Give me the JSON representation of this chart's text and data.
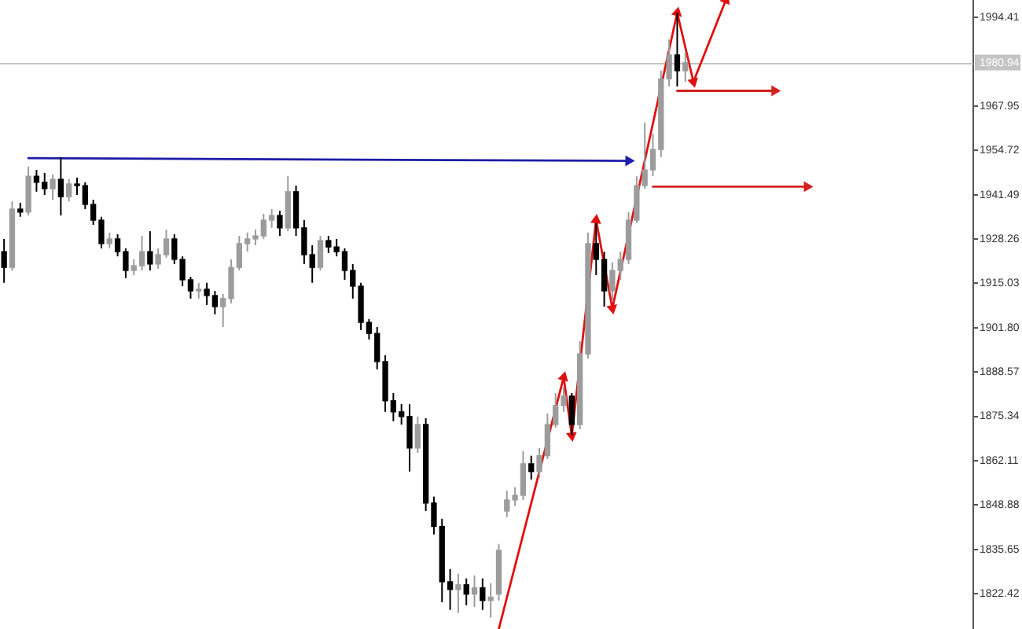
{
  "chart_data": {
    "type": "candlestick",
    "categories": [
      null,
      null,
      null,
      null,
      null,
      null,
      null,
      null,
      null,
      null,
      null,
      null,
      null,
      null,
      null,
      null,
      null,
      null,
      null,
      null,
      null,
      null,
      null,
      null,
      null,
      null,
      null,
      null,
      null,
      null,
      null,
      null,
      null,
      null,
      null,
      null,
      null,
      null,
      null,
      null,
      null,
      null,
      null,
      null,
      null,
      null,
      null,
      null,
      null,
      null,
      null,
      null,
      null,
      null,
      null,
      null,
      null,
      null,
      null,
      null,
      null,
      null,
      null,
      null,
      null,
      null,
      null,
      null,
      null,
      null,
      null,
      null,
      null,
      null,
      null,
      null,
      null,
      null,
      null,
      null,
      null,
      null,
      null,
      null,
      null,
      null,
      null,
      null,
      null,
      null,
      null,
      null,
      null,
      null,
      null,
      null,
      null,
      null,
      null,
      null,
      null,
      null,
      null,
      null,
      null,
      null,
      null,
      null,
      null,
      null,
      null,
      null,
      null,
      null,
      null,
      null,
      null,
      null,
      null,
      null
    ],
    "ohlc": [
      [
        1924.5,
        1928.3,
        1915.2,
        1919.8
      ],
      [
        1919.8,
        1939.5,
        1918.9,
        1937.2
      ],
      [
        1937.2,
        1939.1,
        1934.9,
        1936.3
      ],
      [
        1936.3,
        1949.9,
        1935.3,
        1947.0
      ],
      [
        1947.0,
        1948.9,
        1942.4,
        1945.2
      ],
      [
        1945.2,
        1948.0,
        1941.4,
        1943.3
      ],
      [
        1943.3,
        1947.5,
        1940.0,
        1946.1
      ],
      [
        1946.1,
        1952.7,
        1935.3,
        1940.9
      ],
      [
        1940.9,
        1946.1,
        1939.5,
        1944.7
      ],
      [
        1944.7,
        1946.6,
        1941.4,
        1944.2
      ],
      [
        1944.2,
        1945.2,
        1937.2,
        1938.6
      ],
      [
        1938.6,
        1940.0,
        1932.5,
        1933.9
      ],
      [
        1933.9,
        1934.9,
        1925.5,
        1926.9
      ],
      [
        1926.9,
        1930.2,
        1925.5,
        1928.3
      ],
      [
        1928.3,
        1929.7,
        1923.1,
        1924.5
      ],
      [
        1924.5,
        1925.5,
        1916.6,
        1918.9
      ],
      [
        1918.9,
        1922.2,
        1917.5,
        1920.3
      ],
      [
        1920.3,
        1929.2,
        1918.9,
        1924.5
      ],
      [
        1924.5,
        1930.6,
        1918.9,
        1920.8
      ],
      [
        1920.8,
        1925.5,
        1919.4,
        1923.6
      ],
      [
        1923.6,
        1931.1,
        1922.7,
        1928.3
      ],
      [
        1928.3,
        1929.7,
        1920.8,
        1922.2
      ],
      [
        1922.2,
        1923.1,
        1914.2,
        1916.1
      ],
      [
        1916.1,
        1917.0,
        1910.5,
        1912.8
      ],
      [
        1912.8,
        1915.2,
        1910.5,
        1913.3
      ],
      [
        1913.3,
        1915.2,
        1908.6,
        1911.4
      ],
      [
        1911.4,
        1912.8,
        1905.8,
        1908.1
      ],
      [
        1908.1,
        1911.9,
        1902.0,
        1910.5
      ],
      [
        1910.5,
        1922.2,
        1909.1,
        1919.8
      ],
      [
        1919.8,
        1929.2,
        1918.9,
        1926.9
      ],
      [
        1926.9,
        1930.2,
        1924.5,
        1928.3
      ],
      [
        1928.3,
        1931.1,
        1926.4,
        1929.2
      ],
      [
        1929.2,
        1935.8,
        1928.3,
        1933.9
      ],
      [
        1933.9,
        1937.2,
        1931.6,
        1935.3
      ],
      [
        1935.3,
        1936.7,
        1929.2,
        1931.6
      ],
      [
        1931.6,
        1947.0,
        1930.6,
        1942.4
      ],
      [
        1942.4,
        1944.2,
        1929.2,
        1931.6
      ],
      [
        1931.6,
        1933.9,
        1920.8,
        1923.6
      ],
      [
        1923.6,
        1926.4,
        1915.2,
        1919.8
      ],
      [
        1919.8,
        1929.2,
        1918.9,
        1927.8
      ],
      [
        1927.8,
        1929.2,
        1924.1,
        1925.9
      ],
      [
        1925.9,
        1928.3,
        1923.1,
        1924.5
      ],
      [
        1924.5,
        1925.5,
        1916.1,
        1918.9
      ],
      [
        1918.9,
        1920.8,
        1910.5,
        1914.2
      ],
      [
        1914.2,
        1915.2,
        1901.1,
        1903.4
      ],
      [
        1903.4,
        1904.4,
        1898.3,
        1900.1
      ],
      [
        1900.1,
        1902.0,
        1889.4,
        1891.7
      ],
      [
        1891.7,
        1893.6,
        1876.7,
        1880.0
      ],
      [
        1880.0,
        1882.3,
        1873.9,
        1876.7
      ],
      [
        1876.7,
        1879.0,
        1872.9,
        1875.3
      ],
      [
        1875.3,
        1879.0,
        1858.9,
        1865.9
      ],
      [
        1865.9,
        1875.3,
        1864.5,
        1872.9
      ],
      [
        1872.9,
        1874.8,
        1847.1,
        1849.5
      ],
      [
        1849.5,
        1851.4,
        1840.1,
        1842.5
      ],
      [
        1842.5,
        1844.8,
        1819.9,
        1826.0
      ],
      [
        1826.0,
        1829.8,
        1817.6,
        1823.7
      ],
      [
        1823.7,
        1828.4,
        1816.7,
        1825.1
      ],
      [
        1825.1,
        1827.0,
        1819.0,
        1822.3
      ],
      [
        1822.3,
        1827.9,
        1818.5,
        1824.2
      ],
      [
        1824.2,
        1827.0,
        1817.6,
        1820.4
      ],
      [
        1820.4,
        1825.6,
        1815.3,
        1821.4
      ],
      [
        1822.3,
        1837.3,
        1820.4,
        1835.4
      ],
      [
        1847.1,
        1853.2,
        1845.3,
        1850.4
      ],
      [
        1850.4,
        1854.2,
        1848.6,
        1851.8
      ],
      [
        1851.8,
        1865.0,
        1850.4,
        1861.2
      ],
      [
        1861.2,
        1863.6,
        1856.5,
        1858.9
      ],
      [
        1858.9,
        1865.9,
        1857.0,
        1863.6
      ],
      [
        1863.6,
        1876.2,
        1862.6,
        1872.9
      ],
      [
        1872.9,
        1882.3,
        1872.0,
        1878.6
      ],
      [
        1878.6,
        1884.2,
        1876.7,
        1881.4
      ],
      [
        1881.4,
        1882.3,
        1869.7,
        1872.9
      ],
      [
        1872.9,
        1897.8,
        1871.5,
        1894.0
      ],
      [
        1894.0,
        1930.2,
        1892.6,
        1926.9
      ],
      [
        1926.9,
        1933.0,
        1917.5,
        1922.2
      ],
      [
        1922.2,
        1924.5,
        1908.1,
        1912.8
      ],
      [
        1912.8,
        1921.3,
        1909.5,
        1918.9
      ],
      [
        1918.9,
        1924.5,
        1916.1,
        1922.2
      ],
      [
        1922.2,
        1936.3,
        1920.8,
        1933.9
      ],
      [
        1933.9,
        1947.0,
        1933.0,
        1944.2
      ],
      [
        1944.2,
        1963.0,
        1943.3,
        1948.9
      ],
      [
        1948.9,
        1959.7,
        1947.0,
        1955.0
      ],
      [
        1955.0,
        1978.5,
        1952.7,
        1976.1
      ],
      [
        1976.1,
        1987.8,
        1973.8,
        1983.2
      ],
      [
        1983.2,
        1995.8,
        1973.8,
        1978.5
      ],
      [
        1978.5,
        1984.1,
        1975.2,
        1980.9
      ],
      null,
      null,
      null,
      null,
      null,
      null,
      null,
      null,
      null,
      null,
      null,
      null,
      null,
      null,
      null,
      null,
      null,
      null,
      null,
      null,
      null,
      null,
      null,
      null,
      null,
      null,
      null,
      null,
      null,
      null,
      null,
      null,
      null,
      null,
      null
    ],
    "colors": [
      "#000000",
      "#9c9c9c",
      "#000000",
      "#9c9c9c",
      "#000000",
      "#000000",
      "#9c9c9c",
      "#000000",
      "#9c9c9c",
      "#000000",
      "#000000",
      "#000000",
      "#000000",
      "#9c9c9c",
      "#000000",
      "#000000",
      "#9c9c9c",
      "#9c9c9c",
      "#000000",
      "#9c9c9c",
      "#9c9c9c",
      "#000000",
      "#000000",
      "#000000",
      "#9c9c9c",
      "#000000",
      "#000000",
      "#9c9c9c",
      "#9c9c9c",
      "#9c9c9c",
      "#9c9c9c",
      "#9c9c9c",
      "#9c9c9c",
      "#9c9c9c",
      "#000000",
      "#9c9c9c",
      "#000000",
      "#000000",
      "#000000",
      "#9c9c9c",
      "#000000",
      "#000000",
      "#000000",
      "#000000",
      "#000000",
      "#000000",
      "#000000",
      "#000000",
      "#000000",
      "#000000",
      "#000000",
      "#9c9c9c",
      "#000000",
      "#000000",
      "#000000",
      "#000000",
      "#9c9c9c",
      "#000000",
      "#9c9c9c",
      "#000000",
      "#9c9c9c",
      "#9c9c9c",
      "#9c9c9c",
      "#9c9c9c",
      "#9c9c9c",
      "#000000",
      "#9c9c9c",
      "#9c9c9c",
      "#9c9c9c",
      "#9c9c9c",
      "#000000",
      "#9c9c9c",
      "#9c9c9c",
      "#000000",
      "#000000",
      "#9c9c9c",
      "#9c9c9c",
      "#9c9c9c",
      "#9c9c9c",
      "#9c9c9c",
      "#9c9c9c",
      "#9c9c9c",
      "#9c9c9c",
      "#000000",
      "#9c9c9c",
      null,
      null,
      null,
      null,
      null,
      null,
      null,
      null,
      null,
      null,
      null,
      null,
      null,
      null,
      null,
      null,
      null,
      null,
      null,
      null,
      null,
      null,
      null,
      null,
      null,
      null,
      null,
      null,
      null,
      null,
      null,
      null,
      null,
      null,
      null
    ],
    "series": [
      {
        "type": "line",
        "color": "#e01010",
        "marker": "triangle",
        "values": [
          null,
          null,
          null,
          null,
          null,
          null,
          null,
          null,
          null,
          null,
          null,
          null,
          null,
          null,
          null,
          null,
          null,
          null,
          null,
          null,
          null,
          null,
          null,
          null,
          null,
          null,
          null,
          null,
          null,
          null,
          null,
          null,
          null,
          null,
          null,
          null,
          null,
          null,
          null,
          null,
          null,
          null,
          null,
          null,
          null,
          null,
          null,
          null,
          null,
          null,
          null,
          null,
          null,
          null,
          null,
          null,
          null,
          null,
          null,
          null,
          null,
          1811.9,
          null,
          null,
          null,
          null,
          null,
          null,
          null,
          1887.0,
          1869.6,
          null,
          null,
          1933.9,
          null,
          1907.6,
          null,
          null,
          null,
          null,
          null,
          null,
          null,
          1995.8,
          null,
          1975.2,
          null,
          null,
          null,
          1999.6,
          null,
          null,
          null,
          null,
          null,
          null,
          null,
          null,
          null,
          null,
          null,
          null,
          null,
          null,
          null,
          null,
          null,
          null,
          null,
          null,
          null,
          null,
          null,
          null,
          null,
          null,
          null,
          null,
          null,
          null
        ]
      },
      {
        "type": "line",
        "color": "#1c1ca8",
        "marker": "triangle",
        "values": [
          null,
          null,
          null,
          1952.4,
          null,
          null,
          null,
          null,
          null,
          null,
          null,
          null,
          null,
          null,
          null,
          null,
          null,
          null,
          null,
          null,
          null,
          null,
          null,
          null,
          null,
          null,
          null,
          null,
          null,
          null,
          null,
          null,
          null,
          null,
          null,
          null,
          null,
          null,
          null,
          null,
          null,
          null,
          null,
          null,
          null,
          null,
          null,
          null,
          null,
          null,
          null,
          null,
          null,
          null,
          null,
          null,
          null,
          null,
          null,
          null,
          null,
          null,
          null,
          null,
          null,
          null,
          null,
          null,
          null,
          null,
          null,
          null,
          null,
          null,
          null,
          null,
          null,
          1951.6,
          null,
          null,
          null,
          null,
          null,
          null,
          null,
          null,
          null,
          null,
          null,
          null,
          null,
          null,
          null,
          null,
          null,
          null,
          null,
          null,
          null,
          null,
          null,
          null,
          null,
          null,
          null,
          null,
          null,
          null,
          null,
          null,
          null,
          null,
          null,
          null,
          null,
          null,
          null,
          null,
          null,
          null
        ]
      },
      {
        "type": "line",
        "color": "#d42020",
        "marker": "triangle",
        "values": [
          null,
          null,
          null,
          null,
          null,
          null,
          null,
          null,
          null,
          null,
          null,
          null,
          null,
          null,
          null,
          null,
          null,
          null,
          null,
          null,
          null,
          null,
          null,
          null,
          null,
          null,
          null,
          null,
          null,
          null,
          null,
          null,
          null,
          null,
          null,
          null,
          null,
          null,
          null,
          null,
          null,
          null,
          null,
          null,
          null,
          null,
          null,
          null,
          null,
          null,
          null,
          null,
          null,
          null,
          null,
          null,
          null,
          null,
          null,
          null,
          null,
          null,
          null,
          null,
          null,
          null,
          null,
          null,
          null,
          null,
          null,
          null,
          null,
          null,
          null,
          null,
          null,
          null,
          null,
          null,
          null,
          null,
          null,
          1972.5,
          null,
          null,
          null,
          null,
          null,
          null,
          null,
          null,
          null,
          null,
          null,
          1972.5,
          null,
          null,
          null,
          null,
          null,
          null,
          null,
          null,
          null,
          null,
          null,
          null,
          null,
          null,
          null,
          null,
          null,
          null,
          null,
          null,
          null,
          null,
          null,
          null
        ]
      },
      {
        "type": "line",
        "color": "#d42020",
        "marker": "triangle",
        "values": [
          null,
          null,
          null,
          null,
          null,
          null,
          null,
          null,
          null,
          null,
          null,
          null,
          null,
          null,
          null,
          null,
          null,
          null,
          null,
          null,
          null,
          null,
          null,
          null,
          null,
          null,
          null,
          null,
          null,
          null,
          null,
          null,
          null,
          null,
          null,
          null,
          null,
          null,
          null,
          null,
          null,
          null,
          null,
          null,
          null,
          null,
          null,
          null,
          null,
          null,
          null,
          null,
          null,
          null,
          null,
          null,
          null,
          null,
          null,
          null,
          null,
          null,
          null,
          null,
          null,
          null,
          null,
          null,
          null,
          null,
          null,
          null,
          null,
          null,
          null,
          null,
          null,
          null,
          null,
          null,
          1943.9,
          null,
          null,
          null,
          null,
          null,
          null,
          null,
          null,
          null,
          null,
          null,
          null,
          null,
          null,
          null,
          null,
          null,
          null,
          1943.9,
          null,
          null,
          null,
          null,
          null,
          null,
          null,
          null,
          null,
          null,
          null,
          null,
          null,
          null,
          null,
          null,
          null,
          null,
          null,
          null
        ]
      }
    ],
    "ylim": [
      1811.9,
      1999.6
    ],
    "yticks": [
      1822.42,
      1835.65,
      1848.88,
      1862.11,
      1875.34,
      1888.57,
      {
        "value": 1901.8,
        "label": "1901.80"
      },
      1915.03,
      1928.26,
      1941.49,
      1954.72,
      1967.95,
      1994.41
    ],
    "ref_lines": [
      {
        "axis": "y",
        "value": 1980.94,
        "label": "1980.94",
        "color": "#c4c4c4"
      }
    ],
    "tick_labels": "y"
  }
}
